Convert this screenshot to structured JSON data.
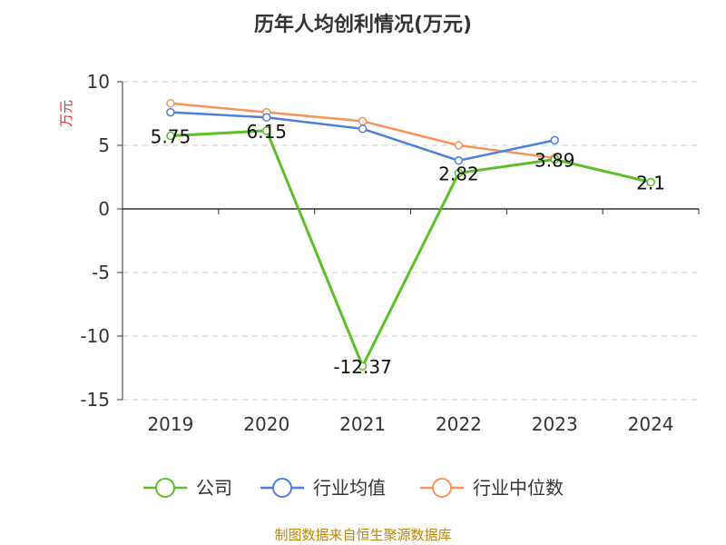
{
  "chart_data": {
    "type": "line",
    "title": "历年人均创利情况(万元)",
    "ylabel": "万元",
    "categories": [
      "2019",
      "2020",
      "2021",
      "2022",
      "2023",
      "2024"
    ],
    "ylim": [
      -15,
      10
    ],
    "yticks": [
      10,
      5,
      0,
      -5,
      -10,
      -15
    ],
    "grid": true,
    "legend_position": "bottom",
    "series": [
      {
        "name": "公司",
        "color": "#5cbf2a",
        "values": [
          5.75,
          6.15,
          -12.37,
          2.82,
          3.89,
          2.1
        ],
        "labels": [
          "5.75",
          "6.15",
          "-12.37",
          "2.82",
          "3.89",
          "2.1"
        ]
      },
      {
        "name": "行业均值",
        "color": "#4f7fdc",
        "values": [
          7.6,
          7.2,
          6.3,
          3.8,
          5.4,
          null
        ]
      },
      {
        "name": "行业中位数",
        "color": "#f7945a",
        "values": [
          8.3,
          7.6,
          6.9,
          5.0,
          4.0,
          null
        ]
      }
    ]
  },
  "source_text": "制图数据来自恒生聚源数据库"
}
